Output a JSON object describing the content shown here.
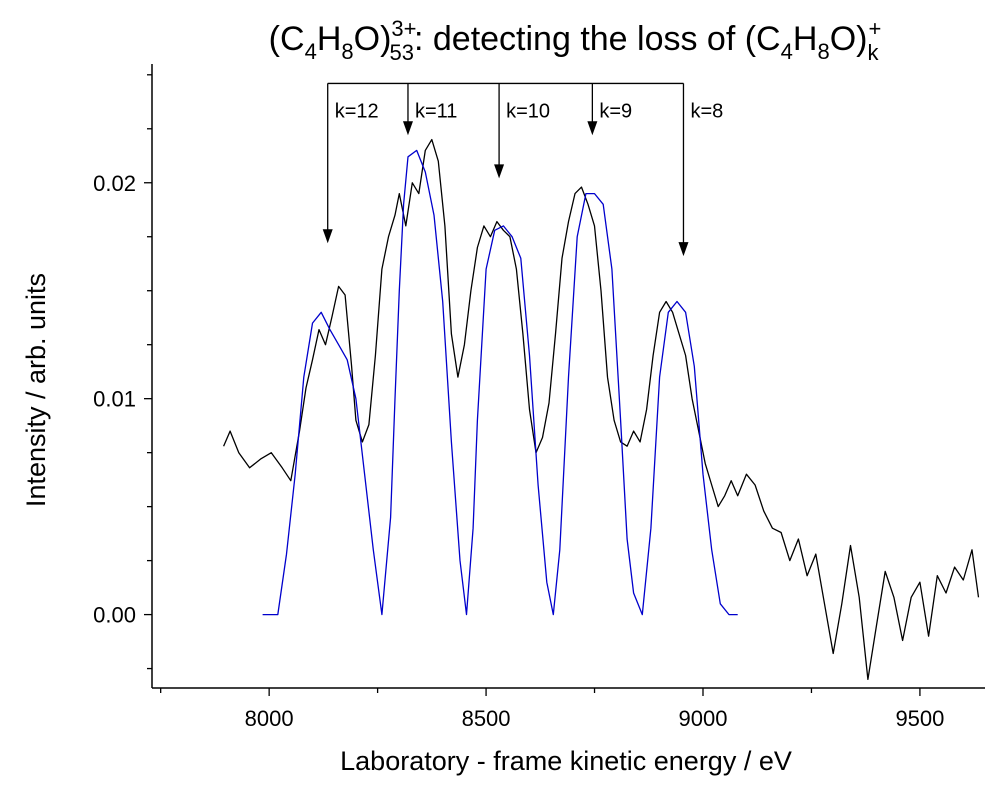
{
  "chart_data": {
    "type": "line",
    "title": {
      "parts": [
        "(C",
        "4",
        "H",
        "8",
        "O)",
        "3+",
        "53",
        ": detecting the loss of (C",
        "4",
        "H",
        "8",
        "O)",
        "k",
        "+"
      ]
    },
    "xlabel": "Laboratory - frame kinetic energy / eV",
    "ylabel": "Intensity / arb. units",
    "xlim": [
      7730,
      9650
    ],
    "ylim": [
      -0.0034,
      0.0255
    ],
    "xticks": [
      8000,
      8500,
      9000,
      9500
    ],
    "xtick_labels": [
      "8000",
      "8500",
      "9000",
      "9500"
    ],
    "yticks": [
      0.0,
      0.01,
      0.02
    ],
    "ytick_labels": [
      "0.00",
      "0.01",
      "0.02"
    ],
    "grid": false,
    "legend": "none",
    "colors": {
      "measured": "#000000",
      "fit": "#0000cc",
      "annotation": "#000000"
    },
    "series": [
      {
        "x": [
          7895,
          7910,
          7930,
          7955,
          7980,
          8005,
          8030,
          8050,
          8070,
          8085,
          8100,
          8115,
          8130,
          8145,
          8160,
          8175,
          8190,
          8200,
          8215,
          8230,
          8245,
          8260,
          8275,
          8290,
          8300,
          8315,
          8330,
          8345,
          8360,
          8375,
          8390,
          8405,
          8420,
          8435,
          8450,
          8465,
          8480,
          8495,
          8510,
          8525,
          8540,
          8555,
          8570,
          8585,
          8600,
          8615,
          8630,
          8645,
          8660,
          8675,
          8690,
          8705,
          8720,
          8735,
          8750,
          8765,
          8780,
          8795,
          8810,
          8825,
          8840,
          8855,
          8870,
          8885,
          8900,
          8915,
          8930,
          8945,
          8960,
          8975,
          8990,
          9005,
          9020,
          9035,
          9050,
          9065,
          9080,
          9100,
          9120,
          9140,
          9160,
          9180,
          9200,
          9220,
          9240,
          9260,
          9280,
          9300,
          9320,
          9340,
          9360,
          9380,
          9400,
          9420,
          9440,
          9460,
          9480,
          9500,
          9520,
          9540,
          9560,
          9580,
          9600,
          9620,
          9635
        ],
        "y": [
          0.0078,
          0.0085,
          0.0075,
          0.0068,
          0.0072,
          0.0075,
          0.0068,
          0.0062,
          0.0085,
          0.0105,
          0.0118,
          0.0132,
          0.0125,
          0.0138,
          0.0152,
          0.0148,
          0.0115,
          0.009,
          0.008,
          0.0088,
          0.012,
          0.016,
          0.0175,
          0.0185,
          0.0195,
          0.018,
          0.02,
          0.0195,
          0.0215,
          0.022,
          0.021,
          0.018,
          0.013,
          0.011,
          0.0125,
          0.015,
          0.017,
          0.018,
          0.0175,
          0.0182,
          0.0178,
          0.0175,
          0.016,
          0.013,
          0.0095,
          0.0075,
          0.0082,
          0.0098,
          0.013,
          0.0165,
          0.0182,
          0.0195,
          0.0198,
          0.019,
          0.018,
          0.015,
          0.011,
          0.009,
          0.008,
          0.0078,
          0.0085,
          0.008,
          0.0095,
          0.012,
          0.014,
          0.0145,
          0.014,
          0.013,
          0.012,
          0.01,
          0.0085,
          0.007,
          0.006,
          0.005,
          0.0055,
          0.0062,
          0.0055,
          0.0065,
          0.006,
          0.0048,
          0.004,
          0.0038,
          0.0025,
          0.0035,
          0.0018,
          0.0028,
          0.0005,
          -0.0018,
          0.0005,
          0.0032,
          0.0008,
          -0.003,
          -0.0005,
          0.002,
          0.0008,
          -0.0012,
          0.0008,
          0.0015,
          -0.001,
          0.0018,
          0.001,
          0.0022,
          0.0016,
          0.003,
          0.0008
        ]
      },
      {
        "x": [
          7985,
          8020,
          8040,
          8060,
          8080,
          8100,
          8120,
          8140,
          8160,
          8180,
          8200,
          8220,
          8240,
          8260,
          8280,
          8290,
          8300,
          8310,
          8320,
          8340,
          8360,
          8380,
          8400,
          8420,
          8440,
          8455,
          8470,
          8480,
          8500,
          8520,
          8540,
          8560,
          8580,
          8600,
          8620,
          8640,
          8655,
          8670,
          8690,
          8710,
          8730,
          8750,
          8770,
          8790,
          8810,
          8825,
          8840,
          8860,
          8880,
          8900,
          8920,
          8940,
          8960,
          8980,
          9000,
          9020,
          9040,
          9060,
          9080
        ],
        "y": [
          0.0,
          0.0,
          0.0028,
          0.0065,
          0.011,
          0.0135,
          0.014,
          0.0132,
          0.0125,
          0.0118,
          0.01,
          0.0065,
          0.003,
          0.0,
          0.0045,
          0.01,
          0.015,
          0.019,
          0.0212,
          0.0215,
          0.0205,
          0.0185,
          0.0145,
          0.008,
          0.0025,
          0.0,
          0.004,
          0.009,
          0.016,
          0.0178,
          0.018,
          0.0175,
          0.0165,
          0.012,
          0.006,
          0.0015,
          0.0,
          0.003,
          0.011,
          0.0175,
          0.0195,
          0.0195,
          0.019,
          0.016,
          0.009,
          0.0035,
          0.001,
          0.0,
          0.004,
          0.011,
          0.014,
          0.0145,
          0.014,
          0.0115,
          0.0065,
          0.003,
          0.0005,
          0.0,
          0.0
        ]
      }
    ],
    "annotations": {
      "bracket_y": 0.0246,
      "arrows": [
        {
          "label": "k=12",
          "x": 8135,
          "y_tip": 0.0172
        },
        {
          "label": "k=11",
          "x": 8320,
          "y_tip": 0.0222
        },
        {
          "label": "k=10",
          "x": 8530,
          "y_tip": 0.0202
        },
        {
          "label": "k=9",
          "x": 8745,
          "y_tip": 0.0222
        },
        {
          "label": "k=8",
          "x": 8955,
          "y_tip": 0.0166
        }
      ]
    }
  }
}
